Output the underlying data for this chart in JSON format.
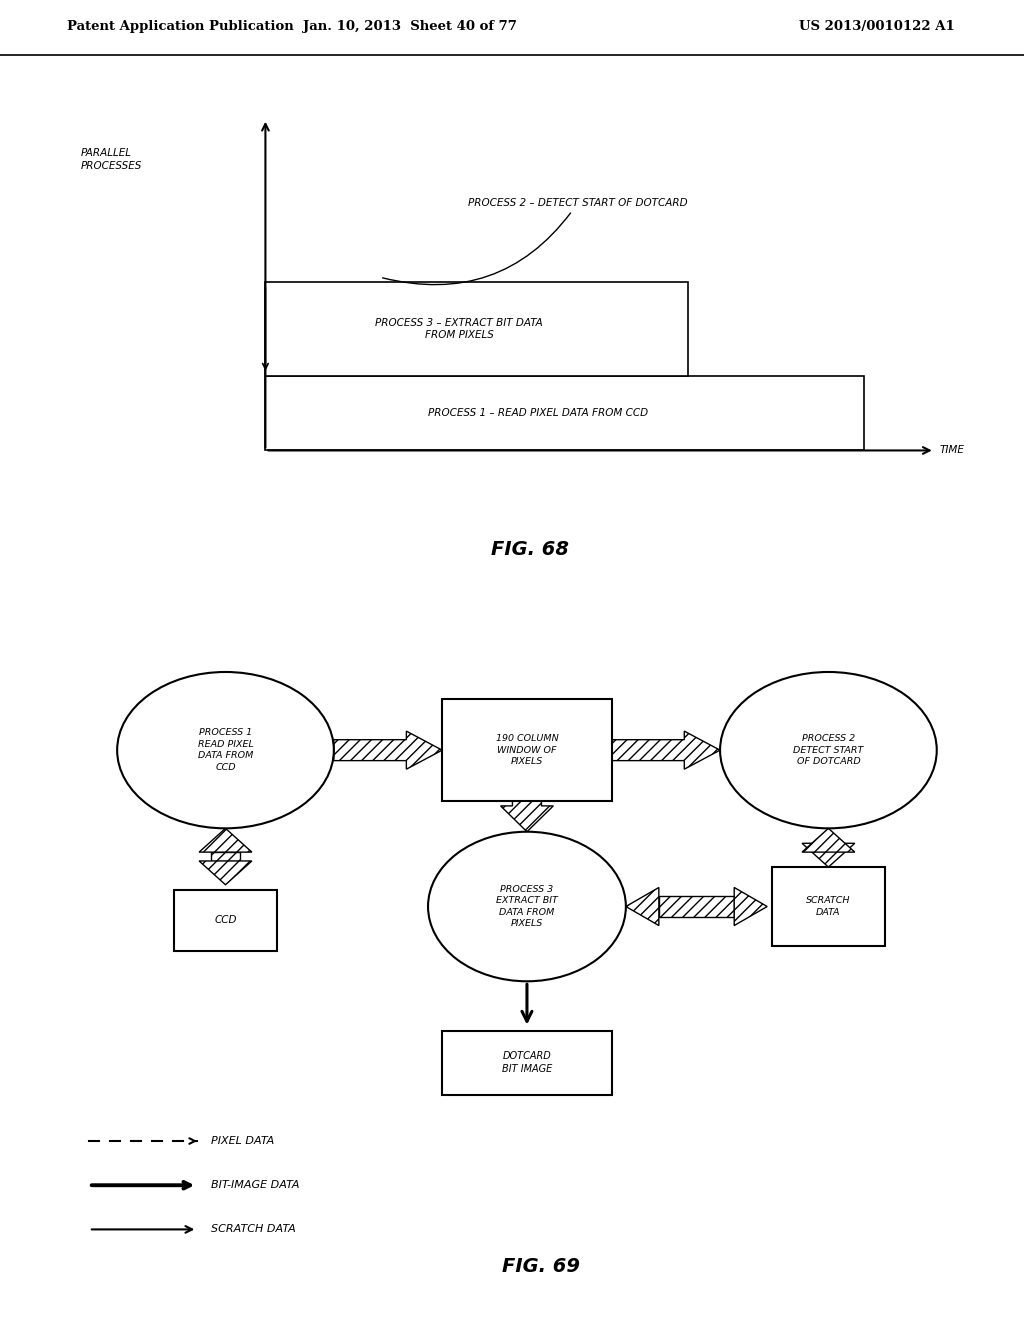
{
  "header_left": "Patent Application Publication",
  "header_mid": "Jan. 10, 2013  Sheet 40 of 77",
  "header_right": "US 2013/0010122 A1",
  "fig68_title": "FIG. 68",
  "fig69_title": "FIG. 69",
  "fig68": {
    "y_label": "PARALLEL\nPROCESSES",
    "x_label": "TIME",
    "proc1_label": "PROCESS 1 – READ PIXEL DATA FROM CCD",
    "proc3_label": "PROCESS 3 – EXTRACT BIT DATA\nFROM PIXELS",
    "proc2_label": "PROCESS 2 – DETECT START OF DOTCARD"
  },
  "fig69": {
    "proc1_label": "PROCESS 1\nREAD PIXEL\nDATA FROM\nCCD",
    "proc2_label": "PROCESS 2\nDETECT START\nOF DOTCARD",
    "proc3_label": "PROCESS 3\nEXTRACT BIT\nDATA FROM\nPIXELS",
    "window_label": "190 COLUMN\nWINDOW OF\nPIXELS",
    "ccd_label": "CCD",
    "scratch_label": "SCRATCH\nDATA",
    "dotcard_label": "DOTCARD\nBIT IMAGE",
    "legend1": "PIXEL DATA",
    "legend2": "BIT-IMAGE DATA",
    "legend3": "SCRATCH DATA"
  },
  "bg_color": "#ffffff",
  "line_color": "#000000"
}
